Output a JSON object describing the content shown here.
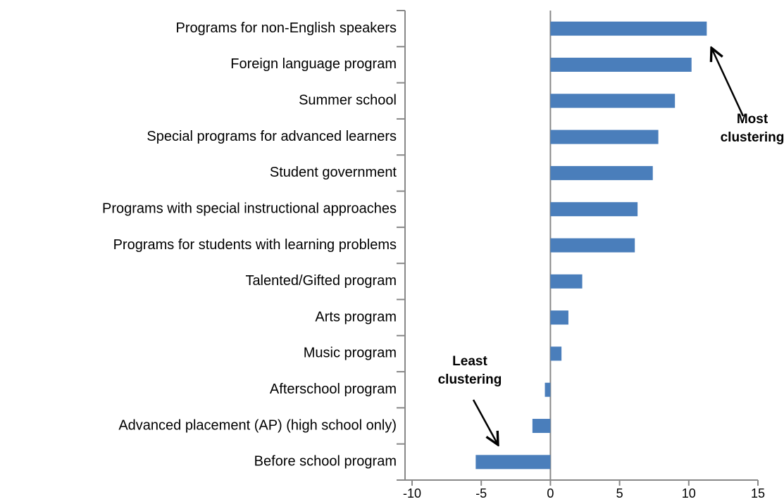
{
  "chart_data": {
    "type": "hbar",
    "categories": [
      "Programs for non-English speakers",
      "Foreign language program",
      "Summer school",
      "Special programs for advanced learners",
      "Student government",
      "Programs with special instructional approaches",
      "Programs for students with learning problems",
      "Talented/Gifted program",
      "Arts program",
      "Music program",
      "Afterschool program",
      "Advanced placement (AP) (high school only)",
      "Before school program"
    ],
    "values": [
      11.3,
      10.2,
      9.0,
      7.8,
      7.4,
      6.3,
      6.1,
      2.3,
      1.3,
      0.8,
      -0.4,
      -1.3,
      -5.4
    ],
    "color": "#4a7ebb",
    "xlim": [
      -10,
      15
    ],
    "xticks": [
      -10,
      -5,
      0,
      5,
      10,
      15
    ],
    "annotations": [
      {
        "lines": [
          "Most",
          "clustering"
        ]
      },
      {
        "lines": [
          "Least",
          "clustering"
        ]
      }
    ]
  }
}
